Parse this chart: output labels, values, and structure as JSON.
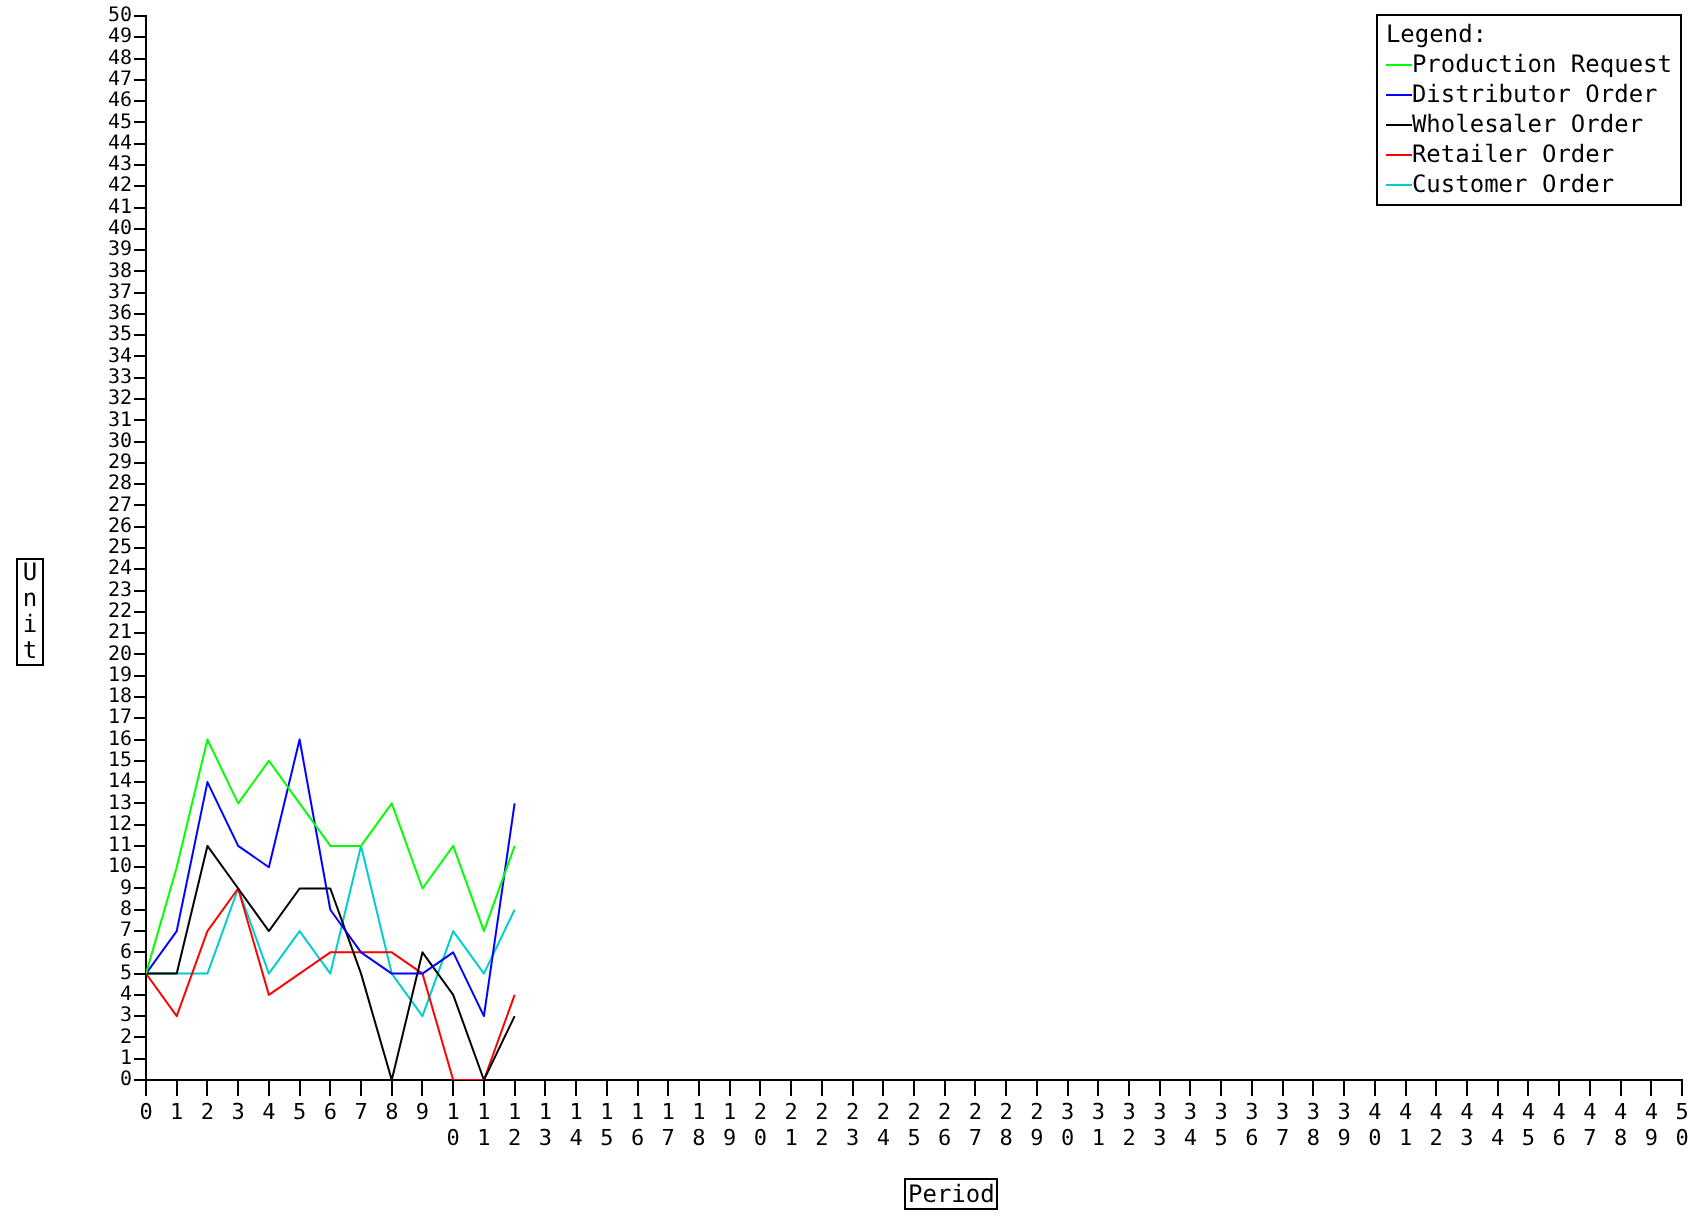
{
  "chart_data": {
    "type": "line",
    "xlabel": "Period",
    "ylabel": "Unit",
    "legend_title": "Legend:",
    "legend": "top right",
    "grid": false,
    "marker": "none",
    "line_style": "solid",
    "x": [
      0,
      1,
      2,
      3,
      4,
      5,
      6,
      7,
      8,
      9,
      10,
      11,
      12
    ],
    "xlim": [
      0,
      50
    ],
    "xticks": [
      0,
      1,
      2,
      3,
      4,
      5,
      6,
      7,
      8,
      9,
      10,
      11,
      12,
      13,
      14,
      15,
      16,
      17,
      18,
      19,
      20,
      21,
      22,
      23,
      24,
      25,
      26,
      27,
      28,
      29,
      30,
      31,
      32,
      33,
      34,
      35,
      36,
      37,
      38,
      39,
      40,
      41,
      42,
      43,
      44,
      45,
      46,
      47,
      48,
      49,
      50
    ],
    "ylim": [
      0,
      50
    ],
    "yticks": [
      0,
      1,
      2,
      3,
      4,
      5,
      6,
      7,
      8,
      9,
      10,
      11,
      12,
      13,
      14,
      15,
      16,
      17,
      18,
      19,
      20,
      21,
      22,
      23,
      24,
      25,
      26,
      27,
      28,
      29,
      30,
      31,
      32,
      33,
      34,
      35,
      36,
      37,
      38,
      39,
      40,
      41,
      42,
      43,
      44,
      45,
      46,
      47,
      48,
      49,
      50
    ],
    "series": [
      {
        "name": "Production Request",
        "color": "#00ff00",
        "values": [
          5,
          10,
          16,
          13,
          15,
          13,
          11,
          11,
          13,
          9,
          11,
          7,
          11
        ]
      },
      {
        "name": "Distributor Order",
        "color": "#0000ff",
        "values": [
          5,
          7,
          14,
          11,
          10,
          16,
          8,
          6,
          5,
          5,
          6,
          3,
          13
        ]
      },
      {
        "name": "Wholesaler Order",
        "color": "#000000",
        "values": [
          5,
          5,
          11,
          9,
          7,
          9,
          9,
          5,
          0,
          6,
          4,
          0,
          3
        ]
      },
      {
        "name": "Retailer Order",
        "color": "#ff0000",
        "values": [
          5,
          3,
          7,
          9,
          4,
          5,
          6,
          6,
          6,
          5,
          0,
          0,
          4
        ]
      },
      {
        "name": "Customer Order",
        "color": "#00cccc",
        "values": [
          5,
          5,
          5,
          9,
          5,
          7,
          5,
          11,
          5,
          3,
          7,
          5,
          8
        ]
      }
    ]
  }
}
